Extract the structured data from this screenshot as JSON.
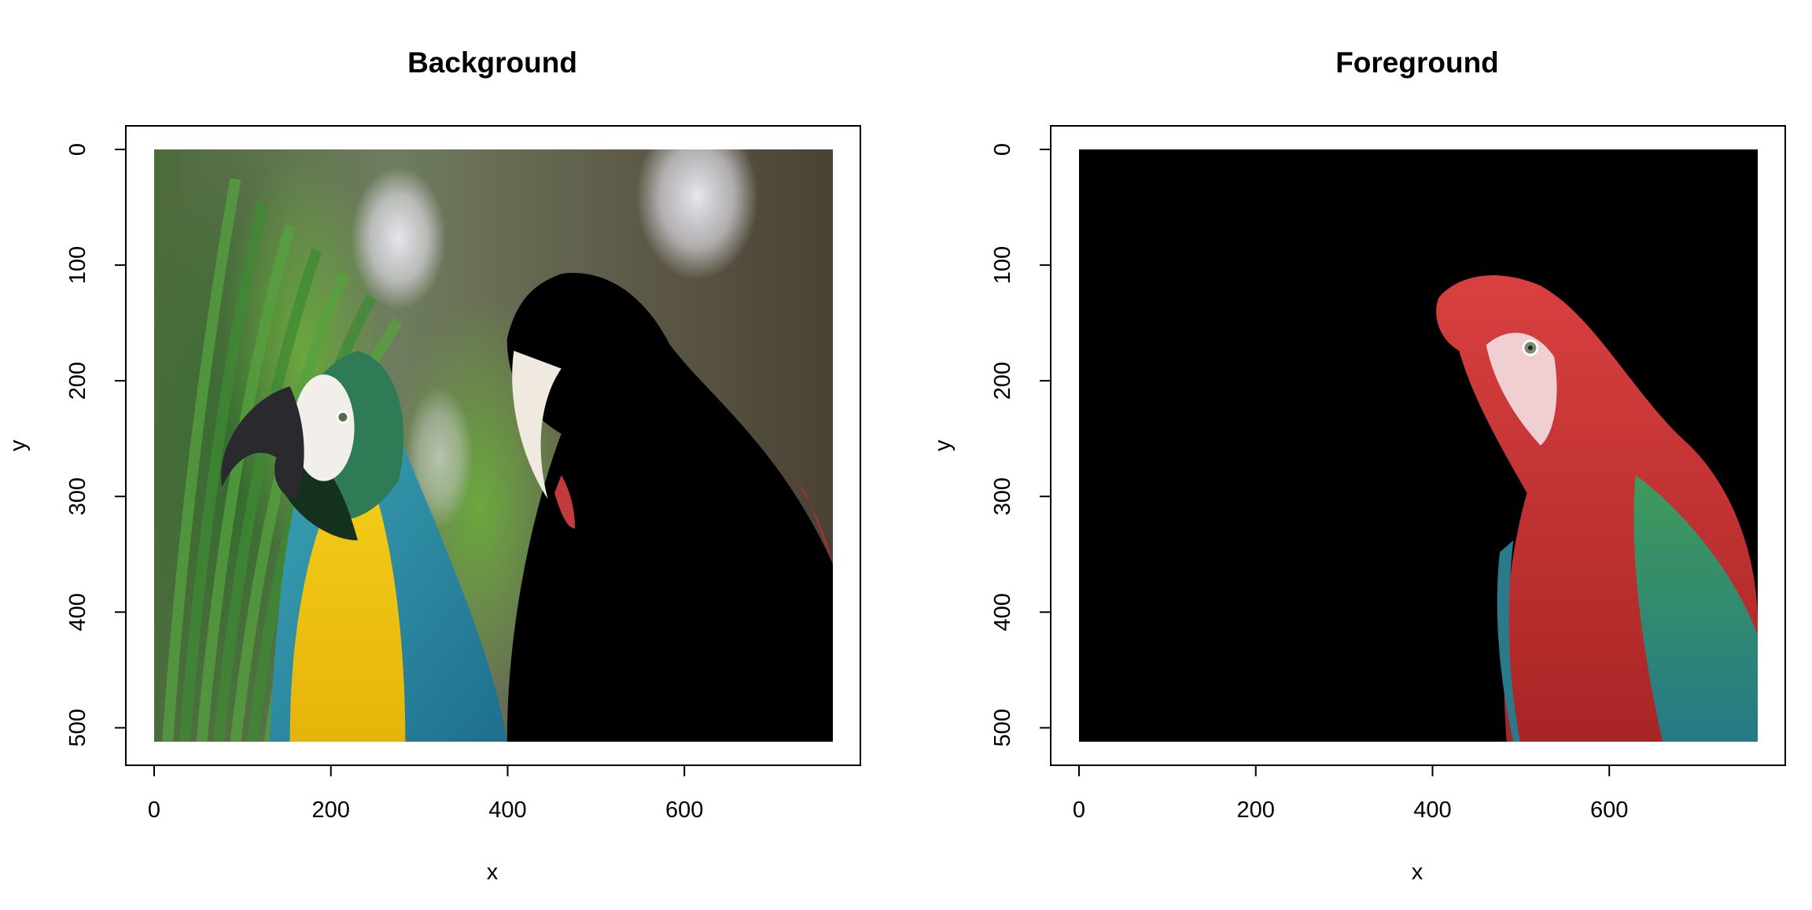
{
  "chart_data": [
    {
      "type": "image",
      "title": "Background",
      "xlabel": "x",
      "ylabel": "y",
      "xlim": [
        0,
        768
      ],
      "ylim": [
        512,
        0
      ],
      "xticks": [
        0,
        200,
        400,
        600
      ],
      "yticks": [
        0,
        100,
        200,
        300,
        400,
        500
      ],
      "image_extent": {
        "x": [
          0,
          768
        ],
        "y": [
          0,
          512
        ]
      },
      "content": "macaw photo with right-hand parrot masked to black",
      "colors": {
        "mask": "#000000",
        "yellow_chest": "#f2c10d",
        "blue_wing": "#2a8aa0",
        "foliage": "#5a9a3a"
      }
    },
    {
      "type": "image",
      "title": "Foreground",
      "xlabel": "x",
      "ylabel": "y",
      "xlim": [
        0,
        768
      ],
      "ylim": [
        512,
        0
      ],
      "xticks": [
        0,
        200,
        400,
        600
      ],
      "yticks": [
        0,
        100,
        200,
        300,
        400,
        500
      ],
      "image_extent": {
        "x": [
          0,
          768
        ],
        "y": [
          0,
          512
        ]
      },
      "content": "black background with the red macaw kept",
      "colors": {
        "mask": "#000000",
        "red_plumage": "#c83232",
        "teal_wing": "#2a8a8a"
      }
    }
  ]
}
